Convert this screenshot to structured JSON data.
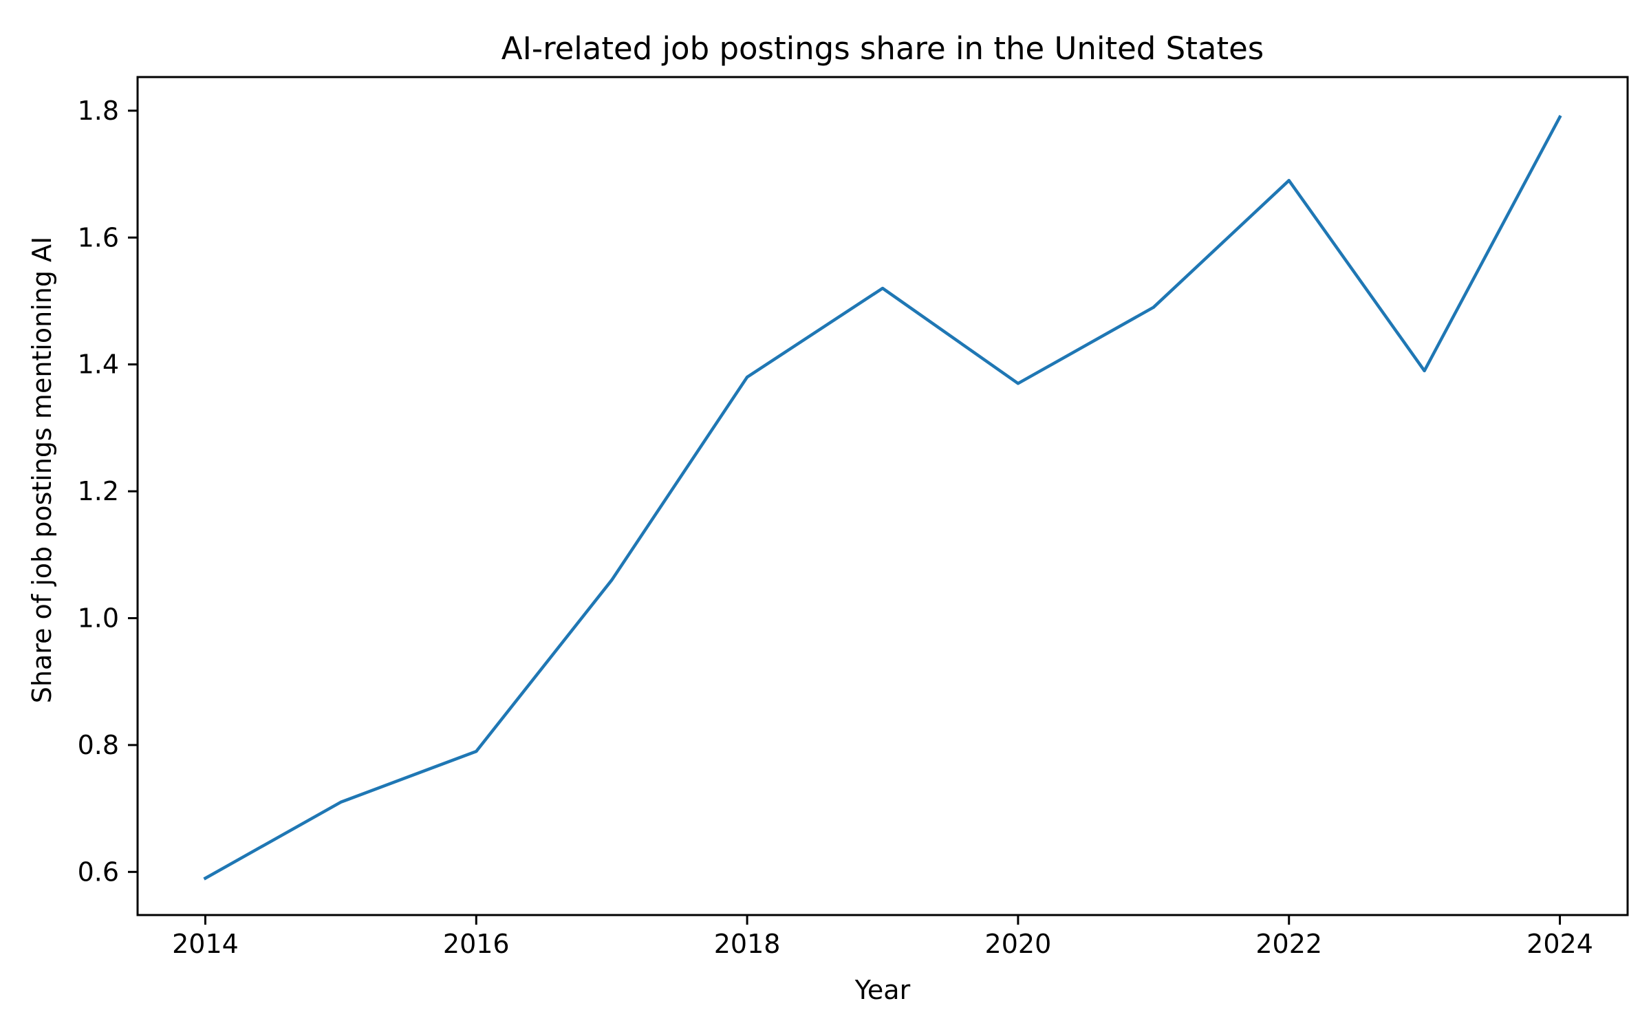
{
  "chart_data": {
    "type": "line",
    "title": "AI-related job postings share in the United States",
    "xlabel": "Year",
    "ylabel": "Share of job postings mentioning AI",
    "xlim": [
      2013.5,
      2024.5
    ],
    "ylim": [
      0.532,
      1.853
    ],
    "xticks": [
      2014,
      2016,
      2018,
      2020,
      2022,
      2024
    ],
    "xtick_labels": [
      "2014",
      "2016",
      "2018",
      "2020",
      "2022",
      "2024"
    ],
    "yticks": [
      0.6,
      0.8,
      1.0,
      1.2,
      1.4,
      1.6,
      1.8
    ],
    "ytick_labels": [
      "0.6",
      "0.8",
      "1.0",
      "1.2",
      "1.4",
      "1.6",
      "1.8"
    ],
    "grid": false,
    "legend": false,
    "colors": {
      "line": "#1f77b4",
      "axes": "#000000",
      "background": "#ffffff"
    },
    "x": [
      2014,
      2015,
      2016,
      2017,
      2018,
      2019,
      2020,
      2021,
      2022,
      2023,
      2024
    ],
    "series": [
      {
        "values": [
          0.59,
          0.71,
          0.79,
          1.06,
          1.38,
          1.52,
          1.37,
          1.49,
          1.69,
          1.39,
          1.79
        ]
      }
    ]
  }
}
